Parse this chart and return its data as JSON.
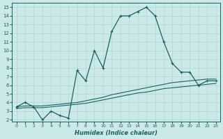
{
  "xlabel": "Humidex (Indice chaleur)",
  "xlim": [
    -0.5,
    23.5
  ],
  "ylim": [
    1.8,
    15.5
  ],
  "xticks": [
    0,
    1,
    2,
    3,
    4,
    5,
    6,
    7,
    8,
    9,
    10,
    11,
    12,
    13,
    14,
    15,
    16,
    17,
    18,
    19,
    20,
    21,
    22,
    23
  ],
  "yticks": [
    2,
    3,
    4,
    5,
    6,
    7,
    8,
    9,
    10,
    11,
    12,
    13,
    14,
    15
  ],
  "bg_color": "#cce9e9",
  "grid_color": "#b0d4d4",
  "line_color": "#1a6060",
  "line1_x": [
    0,
    1,
    2,
    3,
    4,
    5,
    6,
    7,
    8,
    9,
    10,
    11,
    12,
    13,
    14,
    15,
    16,
    17,
    18,
    19,
    20,
    21,
    22,
    23
  ],
  "line1_y": [
    3.5,
    4.0,
    3.5,
    2.0,
    3.0,
    2.5,
    2.2,
    7.7,
    6.5,
    10.0,
    8.0,
    12.2,
    14.0,
    14.0,
    14.5,
    15.0,
    14.0,
    11.0,
    8.5,
    7.5,
    7.5,
    6.0,
    6.5,
    6.5
  ],
  "line2_x": [
    0,
    1,
    2,
    3,
    4,
    5,
    6,
    7,
    8,
    9,
    10,
    11,
    12,
    13,
    14,
    15,
    16,
    17,
    18,
    19,
    20,
    21,
    22,
    23
  ],
  "line2_y": [
    3.5,
    3.6,
    3.6,
    3.6,
    3.7,
    3.8,
    3.9,
    4.0,
    4.2,
    4.4,
    4.6,
    4.9,
    5.1,
    5.3,
    5.5,
    5.7,
    5.9,
    6.1,
    6.3,
    6.4,
    6.5,
    6.6,
    6.7,
    6.7
  ],
  "line3_x": [
    0,
    1,
    2,
    3,
    4,
    5,
    6,
    7,
    8,
    9,
    10,
    11,
    12,
    13,
    14,
    15,
    16,
    17,
    18,
    19,
    20,
    21,
    22,
    23
  ],
  "line3_y": [
    3.3,
    3.4,
    3.4,
    3.4,
    3.5,
    3.6,
    3.7,
    3.8,
    3.9,
    4.1,
    4.3,
    4.5,
    4.7,
    4.9,
    5.1,
    5.2,
    5.4,
    5.6,
    5.7,
    5.8,
    5.9,
    6.0,
    6.1,
    6.2
  ]
}
